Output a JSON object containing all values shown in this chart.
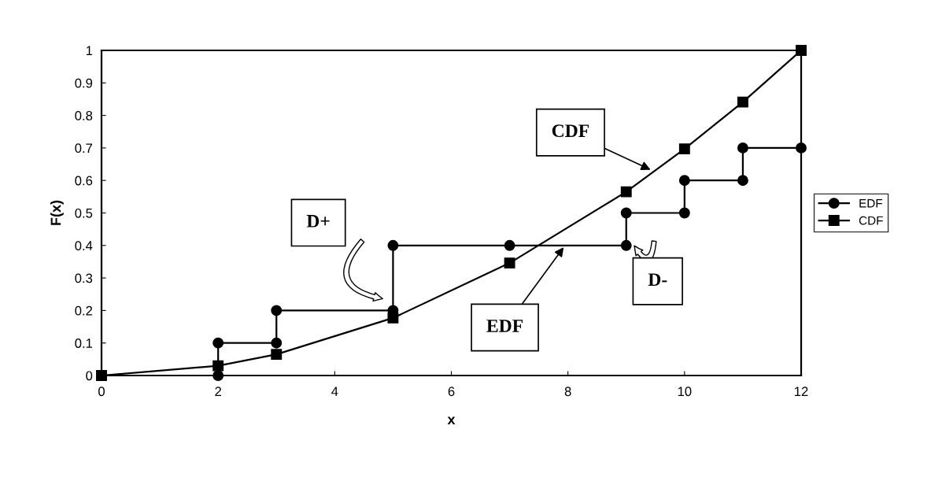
{
  "chart_data": {
    "type": "line",
    "xlabel": "x",
    "ylabel": "F(x)",
    "xlim": [
      0,
      12
    ],
    "xticks": [
      0,
      2,
      4,
      6,
      8,
      10,
      12
    ],
    "ylim": [
      0,
      1
    ],
    "yticks": [
      0,
      0.1,
      0.2,
      0.3,
      0.4,
      0.5,
      0.6,
      0.7,
      0.8,
      0.9,
      1
    ],
    "grid": false,
    "legend": "right",
    "line_style": "solid",
    "series": [
      {
        "name": "EDF",
        "color": "#000000",
        "marker": "circle",
        "x": [
          0,
          2,
          2,
          3,
          3,
          5,
          5,
          7,
          9,
          9,
          10,
          10,
          11,
          11,
          12
        ],
        "values": [
          0,
          0,
          0.1,
          0.1,
          0.2,
          0.2,
          0.4,
          0.4,
          0.4,
          0.5,
          0.5,
          0.6,
          0.6,
          0.7,
          0.7
        ]
      },
      {
        "name": "CDF",
        "color": "#000000",
        "marker": "square",
        "x": [
          0,
          2,
          3,
          5,
          7,
          9,
          10,
          11,
          12
        ],
        "values": [
          0,
          0.03,
          0.065,
          0.177,
          0.346,
          0.565,
          0.697,
          0.841,
          1
        ]
      }
    ],
    "annotations": [
      {
        "text": "CDF",
        "x": 9.45,
        "y": 0.63
      },
      {
        "text": "EDF",
        "x": 7.95,
        "y": 0.4
      },
      "D+",
      "D-"
    ]
  }
}
